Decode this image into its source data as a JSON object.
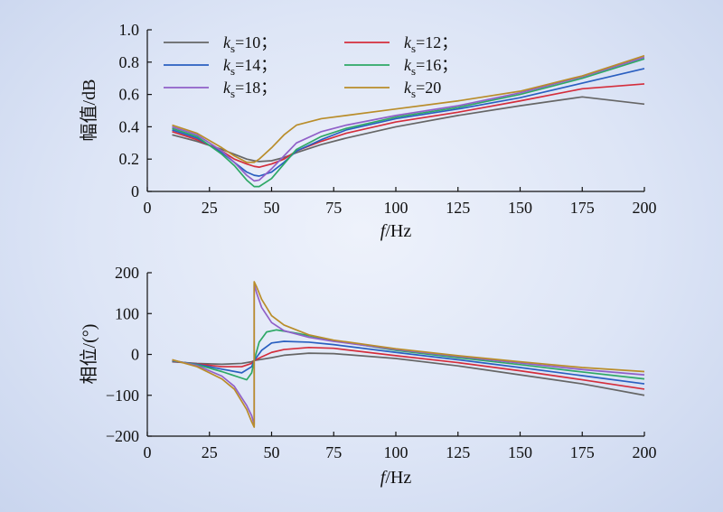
{
  "chart_data": [
    {
      "type": "line",
      "ylabel": "幅值/dB",
      "xlabel_italic": "f",
      "xlabel_rest": "/Hz",
      "xlim": [
        0,
        200
      ],
      "ylim": [
        0,
        1.0
      ],
      "xticks": [
        "0",
        "25",
        "50",
        "75",
        "100",
        "125",
        "150",
        "175",
        "200"
      ],
      "yticks": [
        "0",
        "0.2",
        "0.4",
        "0.6",
        "0.8",
        "1.0"
      ],
      "legend_placement": "top-left",
      "x": [
        10,
        20,
        30,
        35,
        40,
        43,
        45,
        50,
        55,
        60,
        70,
        80,
        100,
        125,
        150,
        175,
        200
      ],
      "series": [
        {
          "name": "ks=10；",
          "k_label": "k",
          "k_sub": "s",
          "k_val": "=10；",
          "color": "#666666",
          "values": [
            0.35,
            0.31,
            0.26,
            0.23,
            0.2,
            0.19,
            0.185,
            0.19,
            0.21,
            0.24,
            0.29,
            0.33,
            0.4,
            0.47,
            0.53,
            0.585,
            0.54
          ]
        },
        {
          "name": "ks=12；",
          "k_label": "k",
          "k_sub": "s",
          "k_val": "=12；",
          "color": "#d42e3c",
          "values": [
            0.37,
            0.32,
            0.25,
            0.2,
            0.17,
            0.155,
            0.15,
            0.17,
            0.2,
            0.25,
            0.31,
            0.36,
            0.43,
            0.49,
            0.56,
            0.635,
            0.665
          ]
        },
        {
          "name": "ks=14；",
          "k_label": "k",
          "k_sub": "s",
          "k_val": "=14；",
          "color": "#2a5fc0",
          "values": [
            0.38,
            0.33,
            0.24,
            0.18,
            0.12,
            0.1,
            0.095,
            0.12,
            0.18,
            0.25,
            0.32,
            0.38,
            0.45,
            0.51,
            0.58,
            0.67,
            0.76
          ]
        },
        {
          "name": "ks=16；",
          "k_label": "k",
          "k_sub": "s",
          "k_val": "=16；",
          "color": "#2ea866",
          "values": [
            0.39,
            0.34,
            0.23,
            0.16,
            0.07,
            0.03,
            0.03,
            0.08,
            0.17,
            0.26,
            0.34,
            0.39,
            0.46,
            0.52,
            0.6,
            0.7,
            0.82
          ]
        },
        {
          "name": "ks=18；",
          "k_label": "k",
          "k_sub": "s",
          "k_val": "=18；",
          "color": "#9060c8",
          "values": [
            0.4,
            0.35,
            0.25,
            0.18,
            0.1,
            0.065,
            0.07,
            0.14,
            0.22,
            0.3,
            0.37,
            0.41,
            0.47,
            0.53,
            0.61,
            0.71,
            0.83
          ]
        },
        {
          "name": "ks=20",
          "k_label": "k",
          "k_sub": "s",
          "k_val": "=20",
          "color": "#b98d2a",
          "values": [
            0.41,
            0.36,
            0.27,
            0.22,
            0.18,
            0.18,
            0.2,
            0.27,
            0.35,
            0.41,
            0.45,
            0.47,
            0.51,
            0.56,
            0.62,
            0.715,
            0.84
          ]
        }
      ]
    },
    {
      "type": "line",
      "ylabel": "相位/(°)",
      "xlabel_italic": "f",
      "xlabel_rest": "/Hz",
      "xlim": [
        0,
        200
      ],
      "ylim": [
        -200,
        200
      ],
      "xticks": [
        "0",
        "25",
        "50",
        "75",
        "100",
        "125",
        "150",
        "175",
        "200"
      ],
      "yticks": [
        "−200",
        "−100",
        "0",
        "100",
        "200"
      ],
      "discontinuity_x": 43,
      "series": [
        {
          "name": "ks=10",
          "color": "#666666",
          "x": [
            10,
            20,
            30,
            38,
            42,
            43,
            43,
            46,
            50,
            55,
            65,
            75,
            100,
            125,
            150,
            175,
            200
          ],
          "values": [
            -18,
            -22,
            -24,
            -22,
            -18,
            -15,
            -15,
            -12,
            -8,
            -2,
            3,
            2,
            -10,
            -28,
            -50,
            -72,
            -100
          ]
        },
        {
          "name": "ks=12",
          "color": "#d42e3c",
          "x": [
            10,
            20,
            30,
            38,
            42,
            43,
            43,
            46,
            50,
            55,
            65,
            75,
            100,
            125,
            150,
            175,
            200
          ],
          "values": [
            -17,
            -23,
            -30,
            -30,
            -22,
            -15,
            -15,
            -6,
            5,
            12,
            17,
            15,
            -3,
            -20,
            -40,
            -62,
            -85
          ]
        },
        {
          "name": "ks=14",
          "color": "#2a5fc0",
          "x": [
            10,
            20,
            30,
            38,
            42,
            43,
            43,
            46,
            50,
            55,
            65,
            75,
            100,
            125,
            150,
            175,
            200
          ],
          "values": [
            -16,
            -24,
            -36,
            -45,
            -30,
            -15,
            -15,
            10,
            28,
            32,
            30,
            24,
            5,
            -13,
            -32,
            -52,
            -72
          ]
        },
        {
          "name": "ks=16",
          "color": "#2ea866",
          "x": [
            10,
            20,
            30,
            38,
            40,
            42,
            43,
            43,
            45,
            48,
            52,
            60,
            75,
            100,
            125,
            150,
            175,
            200
          ],
          "values": [
            -15,
            -25,
            -42,
            -58,
            -62,
            -45,
            -15,
            -15,
            30,
            55,
            60,
            52,
            34,
            10,
            -8,
            -25,
            -43,
            -60
          ]
        },
        {
          "name": "ks=18",
          "color": "#9060c8",
          "x": [
            10,
            20,
            30,
            35,
            40,
            42,
            43,
            43,
            44,
            46,
            50,
            55,
            65,
            75,
            100,
            125,
            150,
            175,
            200
          ],
          "values": [
            -14,
            -27,
            -53,
            -78,
            -125,
            -150,
            -172,
            172,
            150,
            115,
            78,
            58,
            42,
            32,
            12,
            -5,
            -21,
            -37,
            -50
          ]
        },
        {
          "name": "ks=20",
          "color": "#b98d2a",
          "x": [
            10,
            20,
            30,
            35,
            40,
            42,
            43,
            43,
            44,
            46,
            50,
            55,
            65,
            75,
            100,
            125,
            150,
            175,
            200
          ],
          "values": [
            -13,
            -30,
            -60,
            -85,
            -135,
            -165,
            -178,
            178,
            165,
            135,
            95,
            72,
            48,
            35,
            14,
            -3,
            -18,
            -32,
            -42
          ]
        }
      ]
    }
  ]
}
